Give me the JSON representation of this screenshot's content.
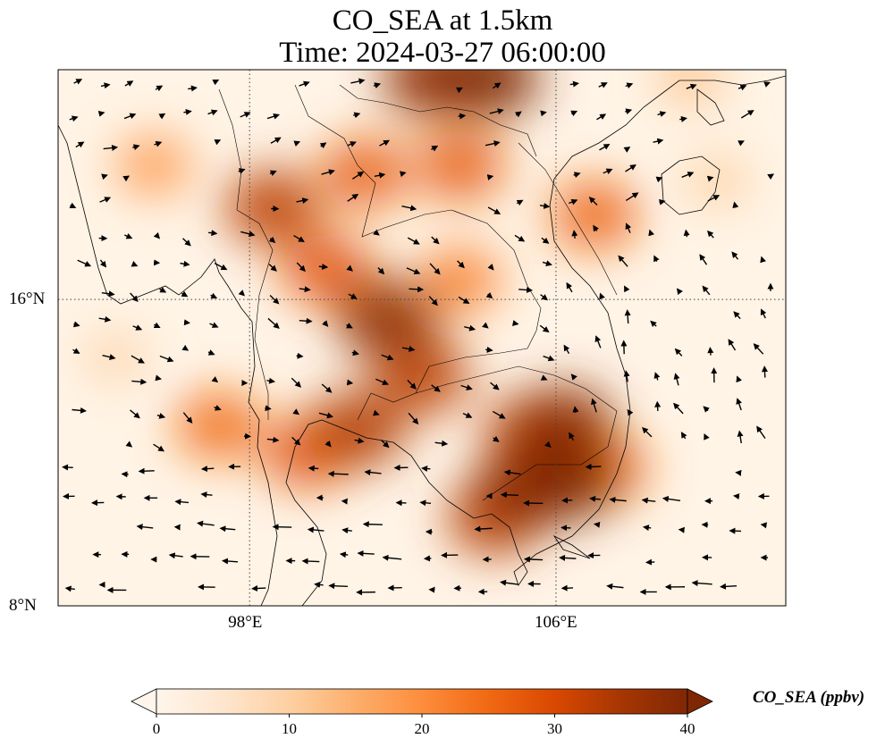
{
  "title_line1": "CO_SEA at 1.5km",
  "title_line2": "Time: 2024-03-27 06:00:00",
  "lat_ticks": [
    {
      "label": "16°N",
      "lat": 16
    },
    {
      "label": "8°N",
      "lat": 8
    }
  ],
  "lon_ticks": [
    {
      "label": "98°E",
      "lon": 98
    },
    {
      "label": "106°E",
      "lon": 106
    }
  ],
  "extent": {
    "lon_min": 93,
    "lon_max": 112,
    "lat_min": 8,
    "lat_max": 22
  },
  "colorbar": {
    "label": "CO_SEA (ppbv)",
    "min": 0,
    "max": 40,
    "extend": "both",
    "ticks": [
      {
        "label": "0",
        "value": 0
      },
      {
        "label": "10",
        "value": 10
      },
      {
        "label": "20",
        "value": 20
      },
      {
        "label": "30",
        "value": 30
      },
      {
        "label": "40",
        "value": 40
      }
    ],
    "colormap": [
      "#fff5eb",
      "#fee6ce",
      "#fdd0a2",
      "#fdae6b",
      "#fd8d3c",
      "#f16913",
      "#d94801",
      "#a63603",
      "#7f2704"
    ]
  },
  "plume_hotspots": [
    {
      "lon": 98.6,
      "lat": 18.4,
      "ppbv": 33
    },
    {
      "lon": 101.6,
      "lat": 15.5,
      "ppbv": 38
    },
    {
      "lon": 102.5,
      "lat": 14.0,
      "ppbv": 33
    },
    {
      "lon": 100.0,
      "lat": 16.8,
      "ppbv": 28
    },
    {
      "lon": 101.0,
      "lat": 19.3,
      "ppbv": 27
    },
    {
      "lon": 103.5,
      "lat": 19.5,
      "ppbv": 27
    },
    {
      "lon": 102.8,
      "lat": 21.8,
      "ppbv": 38
    },
    {
      "lon": 104.2,
      "lat": 21.8,
      "ppbv": 40
    },
    {
      "lon": 100.8,
      "lat": 12.6,
      "ppbv": 34
    },
    {
      "lon": 99.5,
      "lat": 12.0,
      "ppbv": 28
    },
    {
      "lon": 97.2,
      "lat": 12.7,
      "ppbv": 25
    },
    {
      "lon": 105.1,
      "lat": 11.0,
      "ppbv": 38
    },
    {
      "lon": 106.3,
      "lat": 11.3,
      "ppbv": 40
    },
    {
      "lon": 106.2,
      "lat": 12.7,
      "ppbv": 38
    },
    {
      "lon": 105.4,
      "lat": 12.5,
      "ppbv": 33
    },
    {
      "lon": 104.4,
      "lat": 10.3,
      "ppbv": 33
    },
    {
      "lon": 107.0,
      "lat": 18.2,
      "ppbv": 26
    },
    {
      "lon": 107.3,
      "lat": 11.6,
      "ppbv": 24
    },
    {
      "lon": 103.5,
      "lat": 16.5,
      "ppbv": 22
    },
    {
      "lon": 95.5,
      "lat": 19.5,
      "ppbv": 18
    },
    {
      "lon": 110.2,
      "lat": 19.1,
      "ppbv": 10
    },
    {
      "lon": 94.5,
      "lat": 14.5,
      "ppbv": 9
    },
    {
      "lon": 109.5,
      "lat": 21.8,
      "ppbv": 12
    }
  ]
}
